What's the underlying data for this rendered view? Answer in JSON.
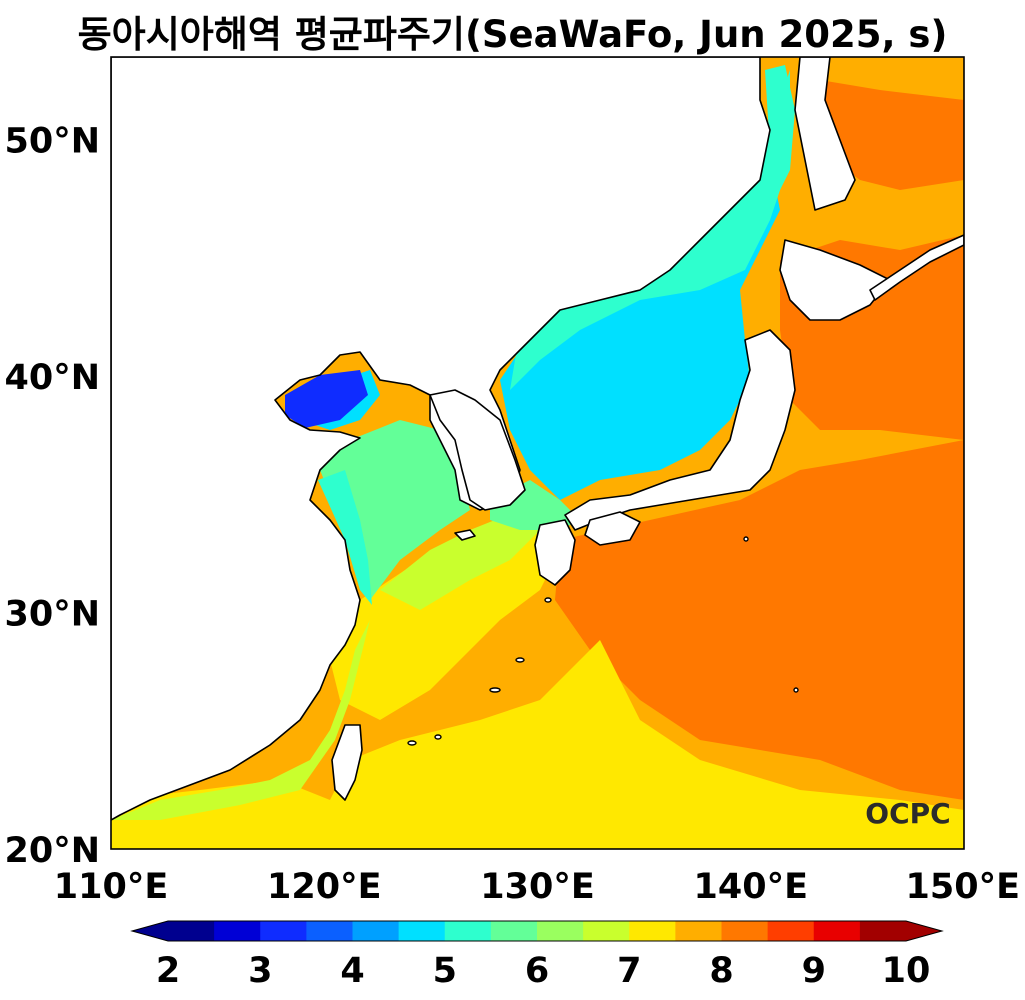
{
  "title": "동아시아해역 평균파주기(SeaWaFo, Jun 2025, s)",
  "map": {
    "lon_range": [
      110,
      150
    ],
    "lat_range": [
      20,
      53.5
    ],
    "lon_ticks": [
      {
        "value": 110,
        "label": "110°E"
      },
      {
        "value": 120,
        "label": "120°E"
      },
      {
        "value": 130,
        "label": "130°E"
      },
      {
        "value": 140,
        "label": "140°E"
      },
      {
        "value": 150,
        "label": "150°E"
      }
    ],
    "lat_ticks": [
      {
        "value": 20,
        "label": "20°N"
      },
      {
        "value": 30,
        "label": "30°N"
      },
      {
        "value": 40,
        "label": "40°N"
      },
      {
        "value": 50,
        "label": "50°N"
      }
    ],
    "logo_text": "OCPC"
  },
  "colorbar": {
    "min": 2,
    "max": 10,
    "step": 0.5,
    "extend": "both",
    "ticks": [
      "2",
      "3",
      "4",
      "5",
      "6",
      "7",
      "8",
      "9",
      "10"
    ],
    "colors": [
      "#00008f",
      "#0000d6",
      "#0f2cff",
      "#0b60ff",
      "#00a0ff",
      "#00e0ff",
      "#2effce",
      "#63ff98",
      "#9aff5f",
      "#c9ff2d",
      "#ffe800",
      "#ffae00",
      "#ff7800",
      "#ff3e00",
      "#e80000",
      "#a20000"
    ],
    "extend_low_color": "#00008f",
    "extend_high_color": "#a20000"
  },
  "colors": {
    "land": "#ffffff",
    "coastline": "#000000"
  }
}
